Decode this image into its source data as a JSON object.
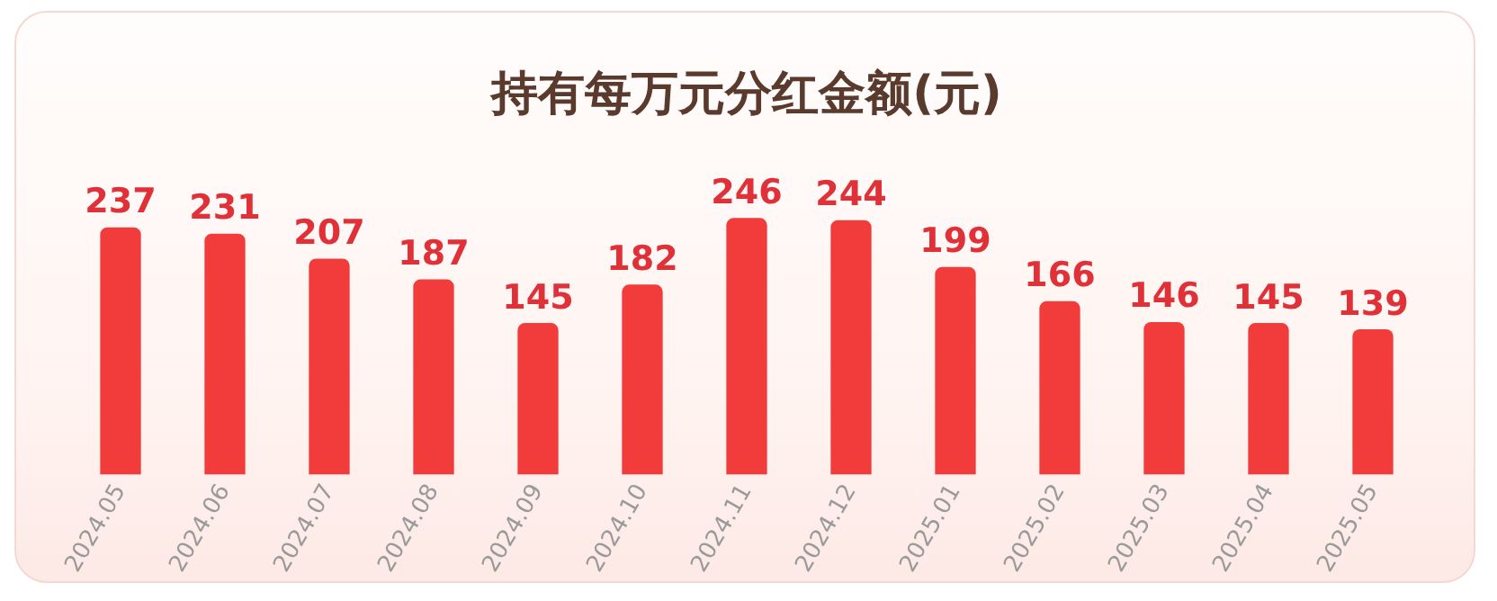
{
  "chart_data": {
    "type": "bar",
    "title": "持有每万元分红金额(元)",
    "categories": [
      "2024.05",
      "2024.06",
      "2024.07",
      "2024.08",
      "2024.09",
      "2024.10",
      "2024.11",
      "2024.12",
      "2025.01",
      "2025.02",
      "2025.03",
      "2025.04",
      "2025.05"
    ],
    "values": [
      237,
      231,
      207,
      187,
      145,
      182,
      246,
      244,
      199,
      166,
      146,
      145,
      139
    ],
    "color": "#f23b3b",
    "data_labels": true,
    "grid": false,
    "legend": false
  }
}
